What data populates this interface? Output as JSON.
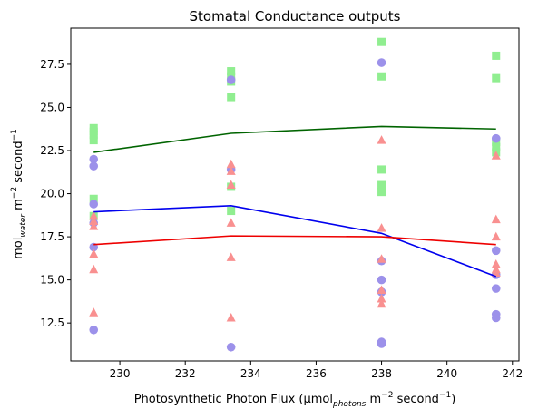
{
  "chart_data": {
    "type": "scatter",
    "title": "Stomatal Conductance outputs",
    "xlabel_parts": [
      "Photosynthetic Photon Flux (µmol",
      "photons",
      " m",
      "−2",
      " second",
      "−1",
      ")"
    ],
    "ylabel_parts": [
      "mol",
      "water",
      " m",
      "−2",
      " second",
      "−1"
    ],
    "xlim": [
      228.5,
      242.2
    ],
    "ylim": [
      10.3,
      29.6
    ],
    "xticks": [
      230,
      232,
      234,
      236,
      238,
      240,
      242
    ],
    "yticks": [
      12.5,
      15.0,
      17.5,
      20.0,
      22.5,
      25.0,
      27.5
    ],
    "ytick_labels": [
      "12.5",
      "15.0",
      "17.5",
      "20.0",
      "22.5",
      "25.0",
      "27.5"
    ],
    "grid": false,
    "series": [
      {
        "marker": "square",
        "color": "#90ee90",
        "points": [
          [
            229.2,
            23.1
          ],
          [
            229.2,
            23.4
          ],
          [
            229.2,
            23.6
          ],
          [
            229.2,
            23.8
          ],
          [
            229.2,
            19.7
          ],
          [
            229.2,
            18.7
          ],
          [
            233.4,
            27.1
          ],
          [
            233.4,
            26.8
          ],
          [
            233.4,
            26.5
          ],
          [
            233.4,
            25.6
          ],
          [
            233.4,
            20.4
          ],
          [
            233.4,
            19.0
          ],
          [
            238.0,
            28.8
          ],
          [
            238.0,
            26.8
          ],
          [
            238.0,
            21.4
          ],
          [
            238.0,
            20.5
          ],
          [
            238.0,
            20.1
          ],
          [
            241.5,
            28.0
          ],
          [
            241.5,
            26.7
          ],
          [
            241.5,
            23.0
          ],
          [
            241.5,
            22.7
          ],
          [
            241.5,
            22.4
          ]
        ]
      },
      {
        "marker": "circle",
        "color": "#9c91ea",
        "points": [
          [
            229.2,
            22.0
          ],
          [
            229.2,
            21.6
          ],
          [
            229.2,
            19.4
          ],
          [
            229.2,
            18.3
          ],
          [
            229.2,
            16.9
          ],
          [
            229.2,
            12.1
          ],
          [
            233.4,
            26.6
          ],
          [
            233.4,
            21.4
          ],
          [
            233.4,
            11.1
          ],
          [
            238.0,
            27.6
          ],
          [
            238.0,
            16.1
          ],
          [
            238.0,
            15.0
          ],
          [
            238.0,
            14.3
          ],
          [
            238.0,
            11.4
          ],
          [
            238.0,
            11.3
          ],
          [
            241.5,
            23.2
          ],
          [
            241.5,
            16.7
          ],
          [
            241.5,
            15.3
          ],
          [
            241.5,
            14.5
          ],
          [
            241.5,
            13.0
          ],
          [
            241.5,
            12.8
          ]
        ]
      },
      {
        "marker": "triangle",
        "color": "#f99090",
        "points": [
          [
            229.2,
            18.7
          ],
          [
            229.2,
            18.4
          ],
          [
            229.2,
            18.1
          ],
          [
            229.2,
            16.5
          ],
          [
            229.2,
            15.6
          ],
          [
            229.2,
            13.1
          ],
          [
            233.4,
            21.7
          ],
          [
            233.4,
            21.3
          ],
          [
            233.4,
            20.5
          ],
          [
            233.4,
            18.3
          ],
          [
            233.4,
            16.3
          ],
          [
            233.4,
            12.8
          ],
          [
            238.0,
            23.1
          ],
          [
            238.0,
            18.0
          ],
          [
            238.0,
            16.2
          ],
          [
            238.0,
            14.4
          ],
          [
            238.0,
            13.9
          ],
          [
            238.0,
            13.6
          ],
          [
            241.5,
            22.2
          ],
          [
            241.5,
            18.5
          ],
          [
            241.5,
            17.5
          ],
          [
            241.5,
            15.9
          ],
          [
            241.5,
            15.6
          ],
          [
            241.5,
            15.4
          ]
        ]
      },
      {
        "line": true,
        "color": "#006400",
        "x": [
          229.2,
          233.4,
          238.0,
          241.5
        ],
        "values": [
          22.4,
          23.5,
          23.9,
          23.75
        ]
      },
      {
        "line": true,
        "color": "#0000ee",
        "x": [
          229.2,
          233.4,
          238.0,
          241.5
        ],
        "values": [
          18.95,
          19.3,
          17.7,
          15.2
        ]
      },
      {
        "line": true,
        "color": "#ee0000",
        "x": [
          229.2,
          233.4,
          238.0,
          241.5
        ],
        "values": [
          17.05,
          17.55,
          17.5,
          17.05
        ]
      }
    ]
  }
}
